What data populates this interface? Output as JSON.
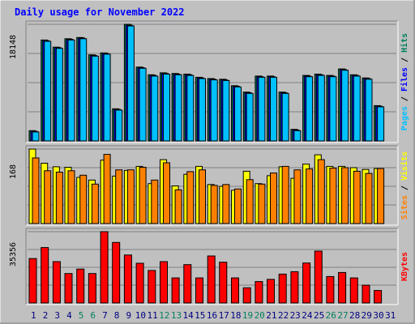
{
  "colors": {
    "background": "#c0c0c0",
    "plot_bg": "#c0c0c0",
    "title": "#0000ff",
    "hits": "#00805c",
    "files": "#0000ff",
    "pages": "#00c0ff",
    "visits": "#ffff00",
    "sites": "#ff8000",
    "kbytes": "#ff0000",
    "weekend_label": "#00805c",
    "weekday_label": "#000080",
    "grid": "#808080",
    "bar_edge": "#000000"
  },
  "chart_data": [
    {
      "type": "bar",
      "title": "Daily usage for November 2022",
      "panel": "hits-files-pages",
      "ylabel_parts": [
        "Pages",
        "Files",
        "Hits"
      ],
      "separator": " / ",
      "ytick_label": "18148",
      "ylim": [
        0,
        18148
      ],
      "categories": [
        "1",
        "2",
        "3",
        "4",
        "5",
        "6",
        "7",
        "8",
        "9",
        "10",
        "11",
        "12",
        "13",
        "14",
        "15",
        "16",
        "17",
        "18",
        "19",
        "20",
        "21",
        "22",
        "23",
        "24",
        "25",
        "26",
        "27",
        "28",
        "29",
        "30",
        "31"
      ],
      "series": [
        {
          "name": "Hits",
          "values": [
            1600,
            15700,
            14600,
            15900,
            16100,
            13400,
            13700,
            5000,
            18148,
            11500,
            10300,
            10600,
            10500,
            10400,
            9900,
            9700,
            9600,
            8600,
            7600,
            10100,
            10100,
            7600,
            1800,
            10200,
            10400,
            10200,
            11200,
            10300,
            9800,
            5500,
            null
          ]
        },
        {
          "name": "Files",
          "values": [
            1500,
            15600,
            14500,
            15800,
            16000,
            13300,
            13600,
            4900,
            18000,
            11400,
            10200,
            10500,
            10400,
            10300,
            9800,
            9600,
            9500,
            8500,
            7500,
            10000,
            10000,
            7500,
            1700,
            10100,
            10300,
            10100,
            11100,
            10200,
            9700,
            5400,
            null
          ]
        },
        {
          "name": "Pages",
          "values": [
            1400,
            15500,
            14400,
            15700,
            15900,
            13200,
            13500,
            4800,
            17900,
            11300,
            10100,
            10400,
            10300,
            10200,
            9700,
            9500,
            9400,
            8400,
            7400,
            9900,
            9900,
            7400,
            1600,
            10000,
            10200,
            10000,
            11000,
            10100,
            9600,
            5300,
            null
          ]
        }
      ]
    },
    {
      "type": "bar",
      "panel": "visits-sites",
      "ylabel_parts": [
        "Sites",
        "Visits"
      ],
      "separator": " / ",
      "ytick_label": "168",
      "ylim": [
        0,
        168
      ],
      "categories": [
        "1",
        "2",
        "3",
        "4",
        "5",
        "6",
        "7",
        "8",
        "9",
        "10",
        "11",
        "12",
        "13",
        "14",
        "15",
        "16",
        "17",
        "18",
        "19",
        "20",
        "21",
        "22",
        "23",
        "24",
        "25",
        "26",
        "27",
        "28",
        "29",
        "30",
        "31"
      ],
      "series": [
        {
          "name": "Visits",
          "values": [
            168,
            136,
            128,
            127,
            104,
            98,
            143,
            107,
            120,
            129,
            90,
            144,
            85,
            111,
            129,
            88,
            84,
            75,
            118,
            90,
            108,
            128,
            102,
            134,
            155,
            129,
            129,
            126,
            122,
            124,
            null
          ]
        },
        {
          "name": "Sites",
          "values": [
            148,
            119,
            116,
            119,
            109,
            89,
            156,
            121,
            121,
            127,
            98,
            137,
            76,
            117,
            121,
            86,
            88,
            78,
            99,
            89,
            114,
            129,
            121,
            123,
            144,
            125,
            126,
            118,
            113,
            124,
            null
          ]
        }
      ]
    },
    {
      "type": "bar",
      "panel": "kbytes",
      "ylabel_parts": [
        "KBytes"
      ],
      "ytick_label": "35356",
      "ylim": [
        0,
        35356
      ],
      "categories": [
        "1",
        "2",
        "3",
        "4",
        "5",
        "6",
        "7",
        "8",
        "9",
        "10",
        "11",
        "12",
        "13",
        "14",
        "15",
        "16",
        "17",
        "18",
        "19",
        "20",
        "21",
        "22",
        "23",
        "24",
        "25",
        "26",
        "27",
        "28",
        "29",
        "30",
        "31"
      ],
      "series": [
        {
          "name": "KBytes",
          "values": [
            22000,
            27500,
            20500,
            14600,
            16800,
            14600,
            35356,
            30000,
            23800,
            19700,
            16100,
            20500,
            12400,
            19000,
            12400,
            23300,
            20200,
            12400,
            7500,
            10600,
            11700,
            14300,
            15500,
            19800,
            25700,
            13100,
            15100,
            12400,
            8800,
            6200,
            null
          ]
        }
      ]
    }
  ],
  "weekend_days": [
    "5",
    "6",
    "12",
    "13",
    "19",
    "20",
    "26",
    "27"
  ]
}
